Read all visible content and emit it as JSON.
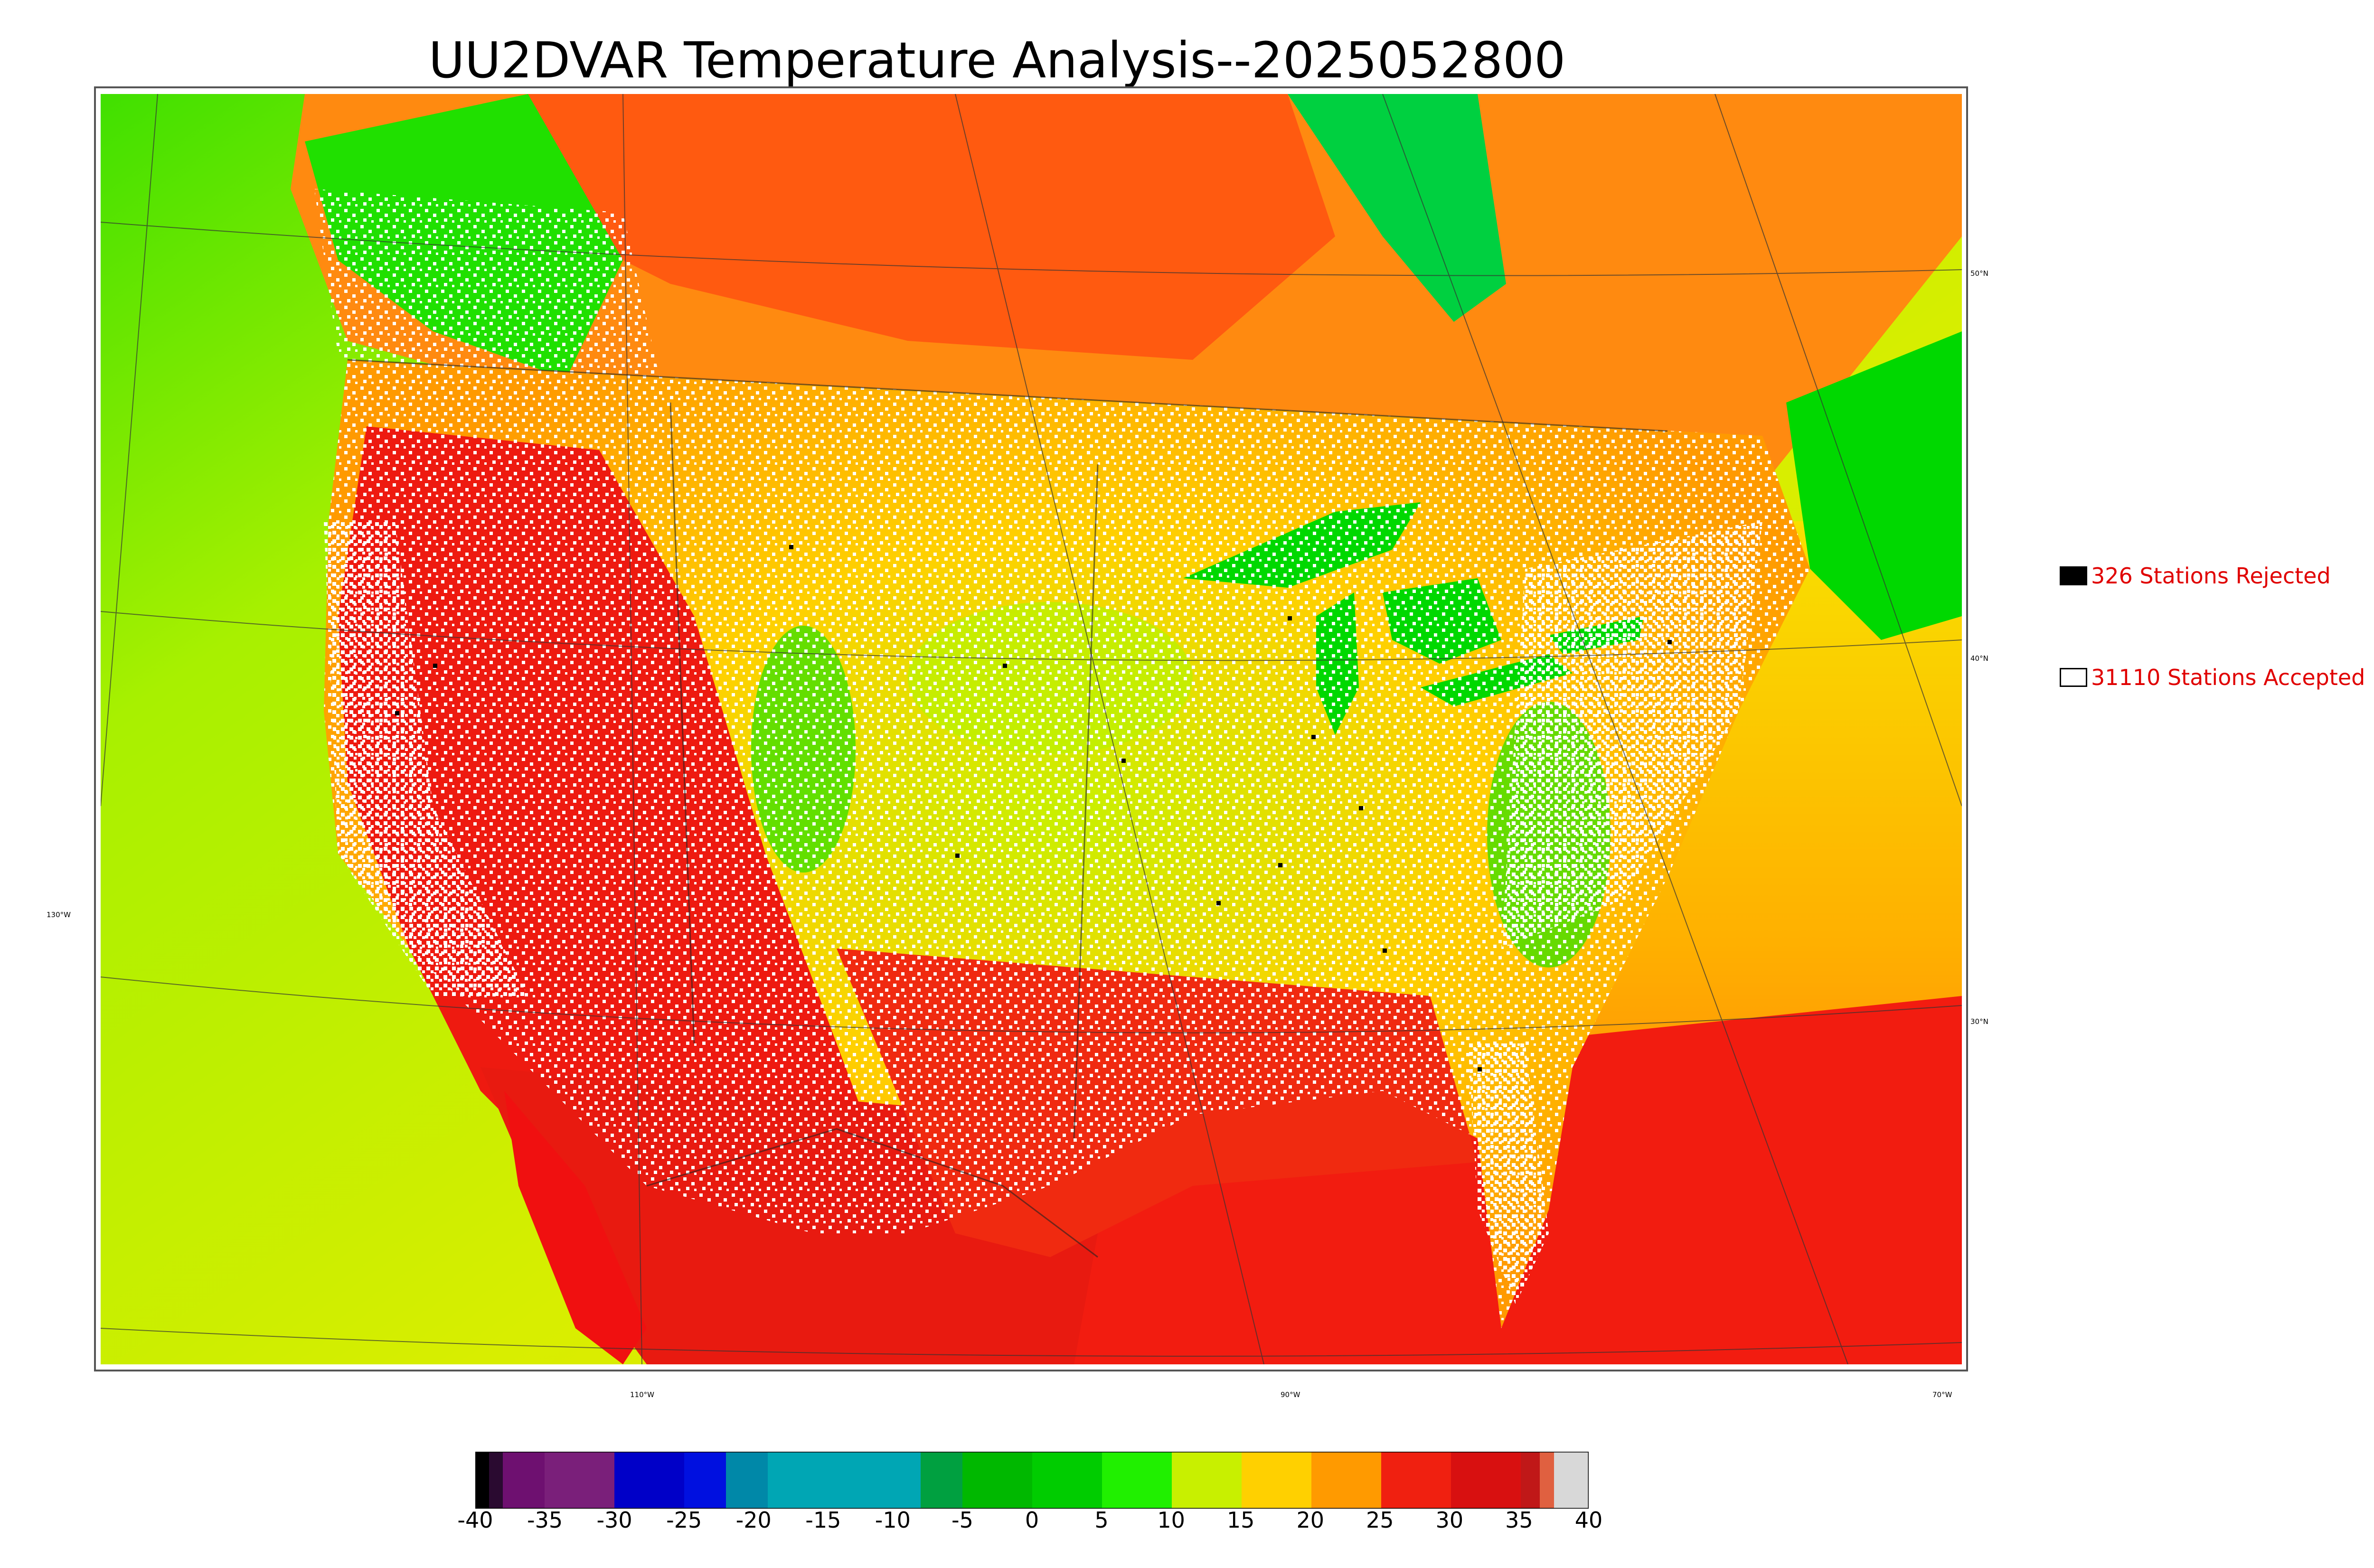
{
  "title": "UU2DVAR Temperature Analysis--2025052800",
  "lat_labels": [
    "50°N",
    "40°N",
    "30°N"
  ],
  "lon_labels": [
    "130°W",
    "110°W",
    "90°W",
    "70°W"
  ],
  "legend": {
    "rejected": {
      "label": "326 Stations Rejected",
      "count": 326,
      "swatch_color": "#000000"
    },
    "accepted": {
      "label": "31110 Stations Accepted",
      "count": 31110,
      "swatch_color": "#ffffff"
    }
  },
  "colorbar": {
    "min": -40,
    "max": 40,
    "tick_labels": [
      "-40",
      "-35",
      "-30",
      "-25",
      "-20",
      "-15",
      "-10",
      "-5",
      "0",
      "5",
      "10",
      "15",
      "20",
      "25",
      "30",
      "35",
      "40"
    ],
    "colors": {
      "very_cold": "#000000",
      "purple": "#7a1f7a",
      "blue": "#0000cc",
      "teal": "#00a6b4",
      "green": "#00c800",
      "yellow_green": "#d8f000",
      "orange": "#ffa000",
      "red": "#f01010",
      "light": "#d8d8d8"
    }
  },
  "map_colors": {
    "ocean_west": "#c8ec00",
    "canada_north": "#ff7a10",
    "conus_core": "#ffd800",
    "southwest_hot": "#ee1010",
    "gulf": "#f21c10",
    "cool_green": "#00d800"
  }
}
